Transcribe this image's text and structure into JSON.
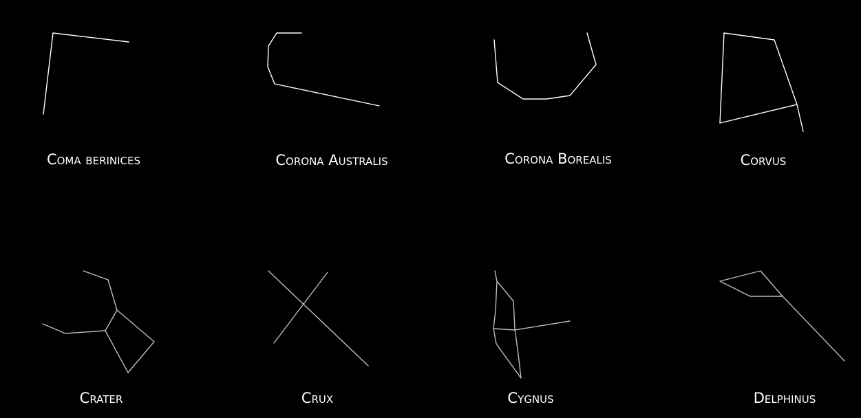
{
  "constellations": [
    {
      "name": "Coma berinices"
    },
    {
      "name": "Corona Australis"
    },
    {
      "name": "Corona Borealis"
    },
    {
      "name": "Corvus"
    },
    {
      "name": "Crater"
    },
    {
      "name": "Crux"
    },
    {
      "name": "Cygnus"
    },
    {
      "name": "Delphinus"
    }
  ],
  "colors": {
    "background": "#000000",
    "line_top_row": "#ffffff",
    "line_bottom_row": "#bdbdbd",
    "label": "#ffffff"
  }
}
